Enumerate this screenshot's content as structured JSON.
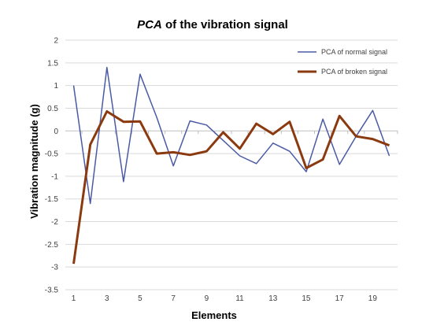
{
  "chart_data": {
    "type": "line",
    "title_italic": "PCA",
    "title_rest": " of the vibration signal",
    "xlabel": "Elements",
    "ylabel": "Vibration magnitude (g)",
    "ylim": [
      -3.5,
      2
    ],
    "yticks": [
      2,
      1.5,
      1,
      0.5,
      0,
      -0.5,
      -1,
      -1.5,
      -2,
      -2.5,
      -3,
      -3.5
    ],
    "ytick_labels": [
      "2",
      "1.5",
      "1",
      "0.5",
      "0",
      "-0.5",
      "-1",
      "-1.5",
      "-2",
      "-2.5",
      "-3",
      "-3.5"
    ],
    "x": [
      1,
      2,
      3,
      4,
      5,
      6,
      7,
      8,
      9,
      10,
      11,
      12,
      13,
      14,
      15,
      16,
      17,
      18,
      19,
      20
    ],
    "xtick_labels": [
      "1",
      "3",
      "5",
      "7",
      "9",
      "11",
      "13",
      "15",
      "17",
      "19"
    ],
    "xtick_values": [
      1,
      3,
      5,
      7,
      9,
      11,
      13,
      15,
      17,
      19
    ],
    "grid": "horizontal",
    "legend_position": "top-right",
    "series": [
      {
        "name": "PCA of normal signal",
        "color": "#4a5aa5",
        "values": [
          1.0,
          -1.6,
          1.4,
          -1.12,
          1.25,
          0.3,
          -0.77,
          0.22,
          0.13,
          -0.21,
          -0.55,
          -0.72,
          -0.27,
          -0.45,
          -0.9,
          0.26,
          -0.74,
          -0.12,
          0.45,
          -0.55
        ]
      },
      {
        "name": "PCA of broken signal",
        "color": "#8b3a0f",
        "values": [
          -2.93,
          -0.3,
          0.43,
          0.2,
          0.21,
          -0.5,
          -0.47,
          -0.53,
          -0.45,
          -0.03,
          -0.39,
          0.16,
          -0.07,
          0.2,
          -0.82,
          -0.63,
          0.33,
          -0.12,
          -0.18,
          -0.32
        ]
      }
    ]
  }
}
